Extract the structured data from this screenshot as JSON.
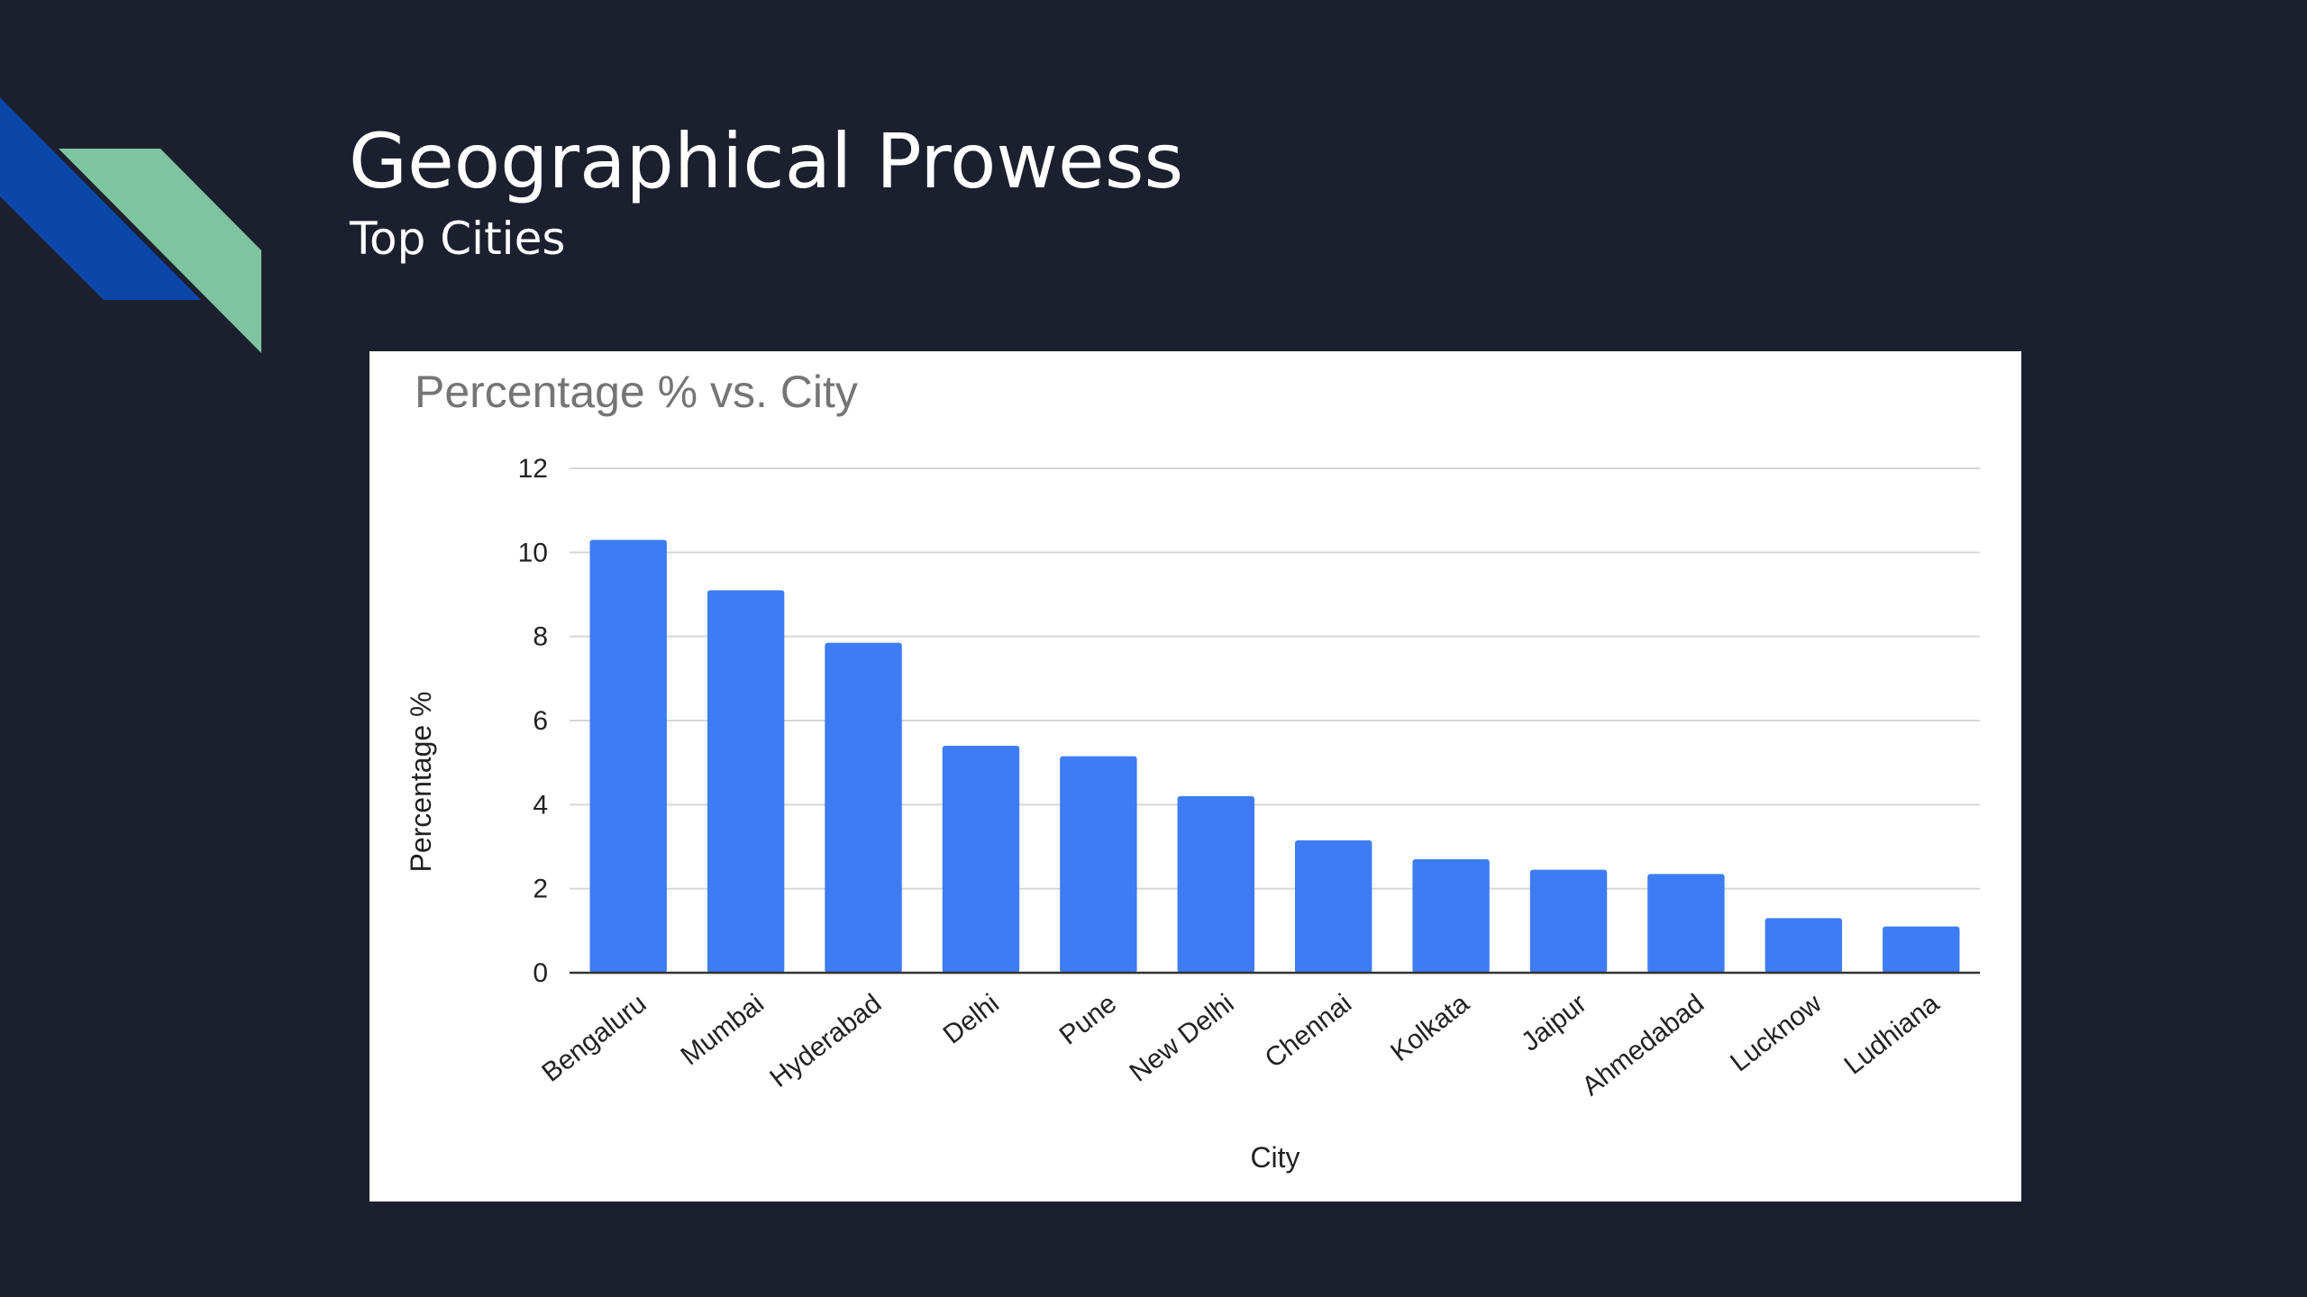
{
  "slide": {
    "title": "Geographical Prowess",
    "subtitle": "Top Cities",
    "background_color": "#1c202e",
    "accent_colors": [
      "#0b47a8",
      "#7fc4a0"
    ]
  },
  "chart_data": {
    "type": "bar",
    "title": "Percentage % vs. City",
    "xlabel": "City",
    "ylabel": "Percentage %",
    "categories": [
      "Bengaluru",
      "Mumbai",
      "Hyderabad",
      "Delhi",
      "Pune",
      "New Delhi",
      "Chennai",
      "Kolkata",
      "Jaipur",
      "Ahmedabad",
      "Lucknow",
      "Ludhiana"
    ],
    "values": [
      10.3,
      9.1,
      7.85,
      5.4,
      5.15,
      4.2,
      3.15,
      2.7,
      2.45,
      2.35,
      1.3,
      1.1
    ],
    "ylim": [
      0,
      12
    ],
    "yticks": [
      0,
      2,
      4,
      6,
      8,
      10,
      12
    ],
    "bar_color": "#3d7cf4",
    "grid": true,
    "legend": "none"
  }
}
